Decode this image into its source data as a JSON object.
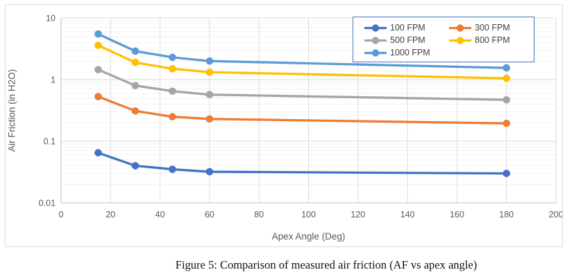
{
  "figure": {
    "caption": "Figure 5: Comparison of measured air friction (AF vs apex angle)"
  },
  "chart_data": {
    "type": "line",
    "title": "",
    "xlabel": "Apex Angle (Deg)",
    "ylabel": "Air Friction (in H2O)",
    "x": [
      15,
      30,
      45,
      60,
      180
    ],
    "series": [
      {
        "name": "100 FPM",
        "color": "#4472C4",
        "values": [
          0.065,
          0.04,
          0.035,
          0.032,
          0.03
        ]
      },
      {
        "name": "300 FPM",
        "color": "#ED7D31",
        "values": [
          0.53,
          0.31,
          0.25,
          0.23,
          0.195
        ]
      },
      {
        "name": "500 FPM",
        "color": "#A5A5A5",
        "values": [
          1.45,
          0.8,
          0.65,
          0.57,
          0.47
        ]
      },
      {
        "name": "800 FPM",
        "color": "#FFC000",
        "values": [
          3.6,
          1.9,
          1.5,
          1.32,
          1.05
        ]
      },
      {
        "name": "1000 FPM",
        "color": "#5B9BD5",
        "values": [
          5.5,
          2.9,
          2.3,
          2.0,
          1.55
        ]
      }
    ],
    "x_axis": {
      "min": 0,
      "max": 200,
      "ticks": [
        0,
        20,
        40,
        60,
        80,
        100,
        120,
        140,
        160,
        180,
        200
      ]
    },
    "y_axis": {
      "scale": "log",
      "min": 0.01,
      "max": 10,
      "tick_values": [
        10,
        1,
        0.1,
        0.01
      ],
      "tick_labels": [
        "10",
        "1",
        "0.1",
        "0.01"
      ]
    },
    "grid": {
      "vertical_major": true,
      "horizontal_major": true,
      "log_minor": true
    },
    "legend": {
      "position": "top-right",
      "columns": 2,
      "border_color": "#4472C4",
      "entries": [
        "100 FPM",
        "300 FPM",
        "500 FPM",
        "800 FPM",
        "1000 FPM"
      ]
    },
    "marker": "circle"
  },
  "style": {
    "gridline_color": "#DADADA",
    "minor_gridline_color": "#F2F2F2",
    "axis_line_color": "#BFBFBF",
    "tick_label_color": "#595959",
    "axis_title_color": "#595959",
    "legend_text_color": "#404040",
    "frame_border_color": "#D9D9D9"
  }
}
